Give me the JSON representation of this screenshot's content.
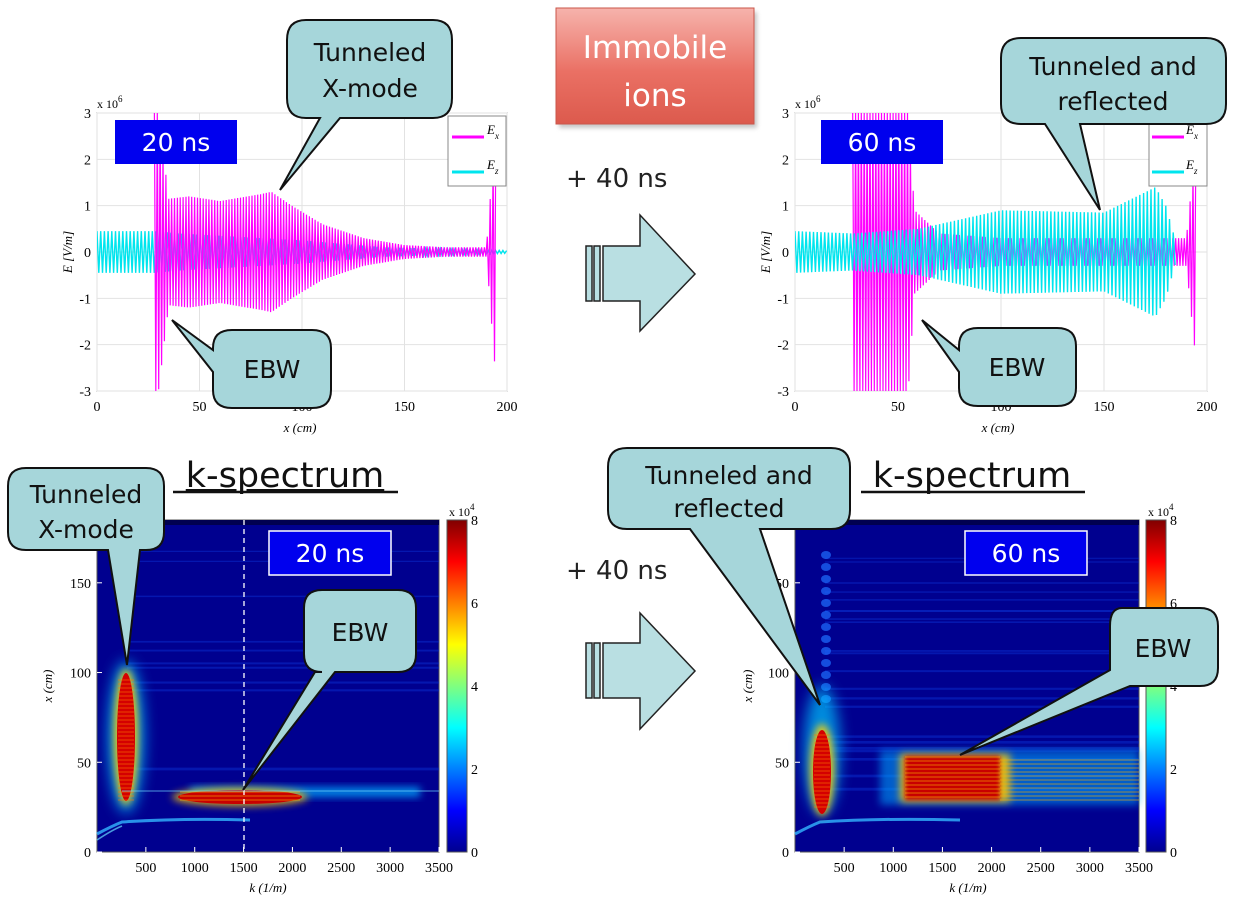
{
  "title_box": {
    "line1": "Immobile",
    "line2": "ions"
  },
  "plus_top": "+ 40 ns",
  "plus_bottom": "+ 40 ns",
  "kspec_left_title": "k-spectrum",
  "kspec_right_title": "k-spectrum",
  "callouts": {
    "tl_tunneled": [
      "Tunneled",
      "X-mode"
    ],
    "tl_ebw": "EBW",
    "tr_tunneled": [
      "Tunneled and",
      "reflected"
    ],
    "tr_ebw": "EBW",
    "bl_tunneled": [
      "Tunneled",
      "X-mode"
    ],
    "bl_ebw": "EBW",
    "br_tunneled": [
      "Tunneled and",
      "reflected"
    ],
    "br_ebw": "EBW"
  },
  "chart_data": [
    {
      "type": "line",
      "time_label": "20 ns",
      "xlabel": "x (cm)",
      "ylabel": "E [V/m]",
      "yscale": "x 10^6",
      "yscale_base": "x 10",
      "yscale_exp": "6",
      "xlim": [
        0,
        200
      ],
      "ylim": [
        -3,
        3
      ],
      "xticks": [
        "0",
        "50",
        "100",
        "150",
        "200"
      ],
      "yticks": [
        "3",
        "2",
        "1",
        "0",
        "-1",
        "-2",
        "-3"
      ],
      "legend": [
        {
          "name": "E",
          "sub": "x",
          "color": "#ff00ff"
        },
        {
          "name": "E",
          "sub": "z",
          "color": "#00e5ee"
        }
      ],
      "series": [
        {
          "name": "Ex",
          "envelope_x": [
            28,
            30,
            35,
            45,
            60,
            80,
            85,
            95,
            110,
            130,
            150,
            170,
            190,
            195
          ],
          "envelope_y": [
            3.0,
            3.0,
            1.15,
            1.2,
            1.1,
            1.25,
            1.3,
            1.0,
            0.6,
            0.3,
            0.15,
            0.1,
            0.1,
            3.0
          ]
        },
        {
          "name": "Ez",
          "envelope_x": [
            0,
            28,
            40,
            60,
            100,
            140,
            200
          ],
          "envelope_y": [
            0.45,
            0.45,
            0.4,
            0.35,
            0.25,
            0.1,
            0.03
          ]
        }
      ]
    },
    {
      "type": "line",
      "time_label": "60 ns",
      "xlabel": "x (cm)",
      "ylabel": "E [V/m]",
      "yscale": "x 10^6",
      "yscale_base": "x 10",
      "yscale_exp": "6",
      "xlim": [
        0,
        200
      ],
      "ylim": [
        -3,
        3
      ],
      "xticks": [
        "0",
        "50",
        "100",
        "150",
        "200"
      ],
      "yticks": [
        "3",
        "2",
        "1",
        "0",
        "-1",
        "-2",
        "-3"
      ],
      "legend": [
        {
          "name": "E",
          "sub": "x",
          "color": "#ff00ff"
        },
        {
          "name": "E",
          "sub": "z",
          "color": "#00e5ee"
        }
      ],
      "series": [
        {
          "name": "Ex",
          "envelope_x": [
            28,
            30,
            55,
            58,
            70,
            100,
            150,
            190,
            195
          ],
          "envelope_y": [
            3.0,
            3.0,
            3.0,
            0.9,
            0.4,
            0.3,
            0.3,
            0.3,
            2.5
          ]
        },
        {
          "name": "Ez",
          "envelope_x": [
            0,
            28,
            60,
            100,
            150,
            175,
            180,
            185
          ],
          "envelope_y": [
            0.45,
            0.4,
            0.5,
            0.9,
            0.85,
            1.4,
            1.0,
            0.2
          ]
        }
      ]
    },
    {
      "type": "heatmap",
      "time_label": "20 ns",
      "xlabel": "k (1/m)",
      "ylabel": "x (cm)",
      "xlim": [
        0,
        3500
      ],
      "ylim": [
        0,
        185
      ],
      "xticks": [
        "500",
        "1000",
        "1500",
        "2000",
        "2500",
        "3000",
        "3500"
      ],
      "yticks": [
        "150",
        "100",
        "50",
        "0"
      ],
      "colorbar": {
        "min": 0,
        "max": 8,
        "ticks": [
          "8",
          "6",
          "4",
          "2",
          "0"
        ],
        "scale": "x 10^4",
        "scale_base": "x 10",
        "scale_exp": "4"
      },
      "dashed_marker_k": 1600,
      "features": [
        {
          "label": "tunneled X-mode",
          "k": 300,
          "x_range": [
            30,
            110
          ],
          "intensity": 8
        },
        {
          "label": "EBW",
          "k_range": [
            1050,
            2050
          ],
          "x_range": [
            30,
            40
          ],
          "intensity": 8
        }
      ]
    },
    {
      "type": "heatmap",
      "time_label": "60 ns",
      "xlabel": "k (1/m)",
      "ylabel": "x (cm)",
      "xlim": [
        0,
        3500
      ],
      "ylim": [
        0,
        185
      ],
      "xticks": [
        "500",
        "1000",
        "1500",
        "2000",
        "2500",
        "3000",
        "3500"
      ],
      "yticks": [
        "150",
        "100",
        "50",
        "0"
      ],
      "colorbar": {
        "min": 0,
        "max": 8,
        "ticks": [
          "8",
          "6",
          "4",
          "2",
          "0"
        ],
        "scale": "x 10^4",
        "scale_base": "x 10",
        "scale_exp": "4"
      },
      "features": [
        {
          "label": "tunneled and reflected",
          "k": 300,
          "x_range": [
            30,
            75
          ],
          "intensity": 8
        },
        {
          "label": "EBW",
          "k_range": [
            1100,
            2100
          ],
          "x_range": [
            30,
            60
          ],
          "intensity": 8
        }
      ]
    }
  ]
}
